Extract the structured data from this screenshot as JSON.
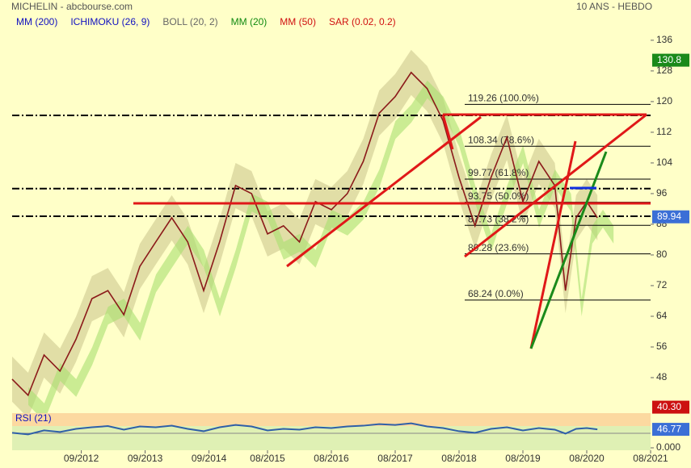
{
  "chart_data": {
    "type": "line",
    "title": "MICHELIN - abcbourse.com",
    "subtitle": "10 ANS - HEBDO",
    "indicators": [
      {
        "name": "MM (200)",
        "color": "#1010c0"
      },
      {
        "name": "ICHIMOKU (26, 9)",
        "color": "#1010c0"
      },
      {
        "name": "BOLL (20, 2)",
        "color": "#666666"
      },
      {
        "name": "MM (20)",
        "color": "#108a10"
      },
      {
        "name": "MM (50)",
        "color": "#d01010"
      },
      {
        "name": "SAR (0.02, 0.2)",
        "color": "#d01010"
      }
    ],
    "x": [
      "08/2011",
      "11/2011",
      "02/2012",
      "05/2012",
      "08/2012",
      "11/2012",
      "02/2013",
      "05/2013",
      "08/2013",
      "11/2013",
      "02/2014",
      "05/2014",
      "08/2014",
      "11/2014",
      "02/2015",
      "05/2015",
      "08/2015",
      "11/2015",
      "02/2016",
      "05/2016",
      "08/2016",
      "11/2016",
      "02/2017",
      "05/2017",
      "08/2017",
      "11/2017",
      "02/2018",
      "05/2018",
      "08/2018",
      "11/2018",
      "02/2019",
      "05/2019",
      "08/2019",
      "11/2019",
      "02/2020",
      "04/2020",
      "06/2020",
      "08/2020",
      "10/2020"
    ],
    "values": [
      47.6,
      43.4,
      53.9,
      49.7,
      58,
      68.6,
      70.7,
      64.4,
      77,
      83.4,
      89.7,
      83.4,
      70.7,
      83.4,
      98.1,
      96,
      85.5,
      87.6,
      83.4,
      93.9,
      91.8,
      96,
      104.4,
      117,
      121.3,
      127.6,
      123.4,
      115,
      100.2,
      87.6,
      100.2,
      110.7,
      93.9,
      104.4,
      98.1,
      70.7,
      89.7,
      93.9,
      89.7
    ],
    "color": "#8b1a1a",
    "xlim": [
      "08/2011",
      "08/2021"
    ],
    "xticks": [
      "09/2012",
      "09/2013",
      "09/2014",
      "08/2015",
      "08/2016",
      "08/2017",
      "08/2018",
      "08/2019",
      "08/2020",
      "08/2021"
    ],
    "ylim": [
      38.74,
      146.5
    ],
    "yticks": [
      48,
      56,
      64,
      72,
      80,
      88,
      96,
      104,
      112,
      120,
      128,
      136
    ],
    "levels": [
      {
        "value": 119.26,
        "label": "119.26  (100.0%)"
      },
      {
        "value": 108.34,
        "label": "108.34  (78.6%)"
      },
      {
        "value": 99.77,
        "label": "99.77  (61.8%)"
      },
      {
        "value": 93.75,
        "label": "93.75  (50.0%)"
      },
      {
        "value": 87.73,
        "label": "87.73  (38.2%)"
      },
      {
        "value": 80.28,
        "label": "80.28  (23.6%)"
      },
      {
        "value": 68.24,
        "label": "68.24  (0.0%)"
      }
    ],
    "hlines": [
      116.4,
      97.3,
      90.1
    ],
    "price_labels": [
      {
        "value": 130.8,
        "label": "130.8",
        "color": "#1a8a1a"
      },
      {
        "value": 89.94,
        "label": "89.94",
        "color": "#3b6fd6"
      },
      {
        "value": 40.3,
        "label": "40.30",
        "color": "#cc1111"
      }
    ],
    "rsi": {
      "title": "RSI (21)",
      "ylim": [
        0,
        100
      ],
      "yticks": [
        {
          "value": 0,
          "label": "0.000"
        }
      ],
      "values": [
        38,
        34,
        44,
        40,
        48,
        52,
        55,
        46,
        54,
        52,
        56,
        48,
        42,
        52,
        58,
        54,
        44,
        48,
        46,
        52,
        50,
        54,
        56,
        60,
        58,
        62,
        54,
        50,
        42,
        38,
        48,
        52,
        44,
        50,
        46,
        36,
        48,
        50,
        46.77
      ],
      "color": "#2f5fa8",
      "last": {
        "value": 46.77,
        "label": "46.77"
      }
    }
  }
}
